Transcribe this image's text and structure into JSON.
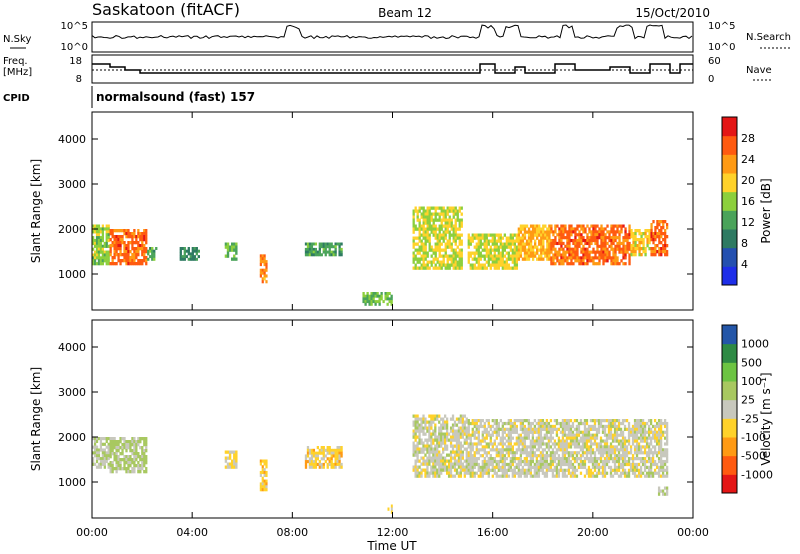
{
  "header": {
    "station": "Saskatoon (fitACF)",
    "beam": "Beam 12",
    "date": "15/Oct/2010"
  },
  "noise_panel": {
    "left_label": "N.Sky",
    "right_label": "N.Search",
    "left_ticks": [
      "10^5",
      "10^0"
    ],
    "right_ticks": [
      "10^5",
      "10^0"
    ]
  },
  "freq_panel": {
    "left_label_1": "Freq.",
    "left_label_2": "[MHz]",
    "right_label": "Nave",
    "left_ticks": [
      "18",
      "8"
    ],
    "right_ticks": [
      "60",
      "0"
    ]
  },
  "cpid": {
    "label": "CPID",
    "value": "normalsound (fast) 157"
  },
  "colors": {
    "power_scale": [
      "#1e2ee8",
      "#2450b0",
      "#2e7a62",
      "#4aa35a",
      "#8ccf3c",
      "#ffd22a",
      "#ff9a14",
      "#ff5a10",
      "#e41616"
    ],
    "velocity_scale": [
      "#e41616",
      "#ff5a10",
      "#ff9a14",
      "#ffd22a",
      "#c8c8bd",
      "#a8c860",
      "#6cc442",
      "#2e8a44",
      "#2456a8"
    ]
  },
  "x_axis": {
    "label": "Time UT",
    "ticks": [
      "00:00",
      "04:00",
      "08:00",
      "12:00",
      "16:00",
      "20:00",
      "00:00"
    ]
  },
  "power_panel": {
    "ylabel": "Slant Range [km]",
    "yticks": [
      "4000",
      "3000",
      "2000",
      "1000"
    ],
    "colorbar_label": "Power [dB]",
    "colorbar_ticks": [
      "28",
      "24",
      "20",
      "16",
      "12",
      "8",
      "4"
    ]
  },
  "velocity_panel": {
    "ylabel": "Slant Range [km]",
    "yticks": [
      "4000",
      "3000",
      "2000",
      "1000"
    ],
    "colorbar_label": "Velocity [m s⁻¹]",
    "colorbar_ticks": [
      "1000",
      "500",
      "100",
      "25",
      "-25",
      "-100",
      "-500",
      "-1000"
    ]
  },
  "chart_data": [
    {
      "type": "heatmap",
      "title": "Power",
      "x_unit": "hours UT",
      "xlim": [
        0,
        24
      ],
      "ylim": [
        200,
        4600
      ],
      "ylabel": "Slant Range [km]",
      "xlabel": "Time UT",
      "color_label": "Power [dB]",
      "color_range": [
        0,
        32
      ],
      "regions": [
        {
          "t": [
            0.0,
            0.7
          ],
          "r": [
            1200,
            2100
          ],
          "value": 16
        },
        {
          "t": [
            0.7,
            2.2
          ],
          "r": [
            1200,
            2000
          ],
          "value": 26
        },
        {
          "t": [
            2.2,
            2.6
          ],
          "r": [
            1300,
            1600
          ],
          "value": 12
        },
        {
          "t": [
            3.5,
            4.3
          ],
          "r": [
            1300,
            1600
          ],
          "value": 10
        },
        {
          "t": [
            5.3,
            5.8
          ],
          "r": [
            1300,
            1700
          ],
          "value": 14
        },
        {
          "t": [
            6.7,
            7.0
          ],
          "r": [
            800,
            1500
          ],
          "value": 24
        },
        {
          "t": [
            8.5,
            10.0
          ],
          "r": [
            1400,
            1700
          ],
          "value": 12
        },
        {
          "t": [
            10.8,
            12.0
          ],
          "r": [
            300,
            600
          ],
          "value": 14
        },
        {
          "t": [
            12.8,
            14.8
          ],
          "r": [
            1100,
            2500
          ],
          "value": 18
        },
        {
          "t": [
            15.0,
            17.0
          ],
          "r": [
            1100,
            1900
          ],
          "value": 18
        },
        {
          "t": [
            17.0,
            18.3
          ],
          "r": [
            1300,
            2100
          ],
          "value": 22
        },
        {
          "t": [
            18.3,
            21.5
          ],
          "r": [
            1200,
            2100
          ],
          "value": 26
        },
        {
          "t": [
            21.5,
            22.3
          ],
          "r": [
            1400,
            2000
          ],
          "value": 20
        },
        {
          "t": [
            22.3,
            23.0
          ],
          "r": [
            1400,
            2200
          ],
          "value": 26
        }
      ]
    },
    {
      "type": "heatmap",
      "title": "Velocity",
      "x_unit": "hours UT",
      "xlim": [
        0,
        24
      ],
      "ylim": [
        200,
        4600
      ],
      "ylabel": "Slant Range [km]",
      "xlabel": "Time UT",
      "color_label": "Velocity [m s⁻¹]",
      "color_range": [
        -1000,
        1000
      ],
      "regions": [
        {
          "t": [
            0.0,
            0.7
          ],
          "r": [
            1300,
            2000
          ],
          "value": 80
        },
        {
          "t": [
            0.7,
            2.2
          ],
          "r": [
            1200,
            2000
          ],
          "value": 150
        },
        {
          "t": [
            5.3,
            5.8
          ],
          "r": [
            1300,
            1700
          ],
          "value": -150
        },
        {
          "t": [
            6.7,
            7.0
          ],
          "r": [
            800,
            1500
          ],
          "value": -200
        },
        {
          "t": [
            8.5,
            10.0
          ],
          "r": [
            1300,
            1800
          ],
          "value": -200
        },
        {
          "t": [
            11.8,
            12.0
          ],
          "r": [
            300,
            500
          ],
          "value": -150
        },
        {
          "t": [
            12.8,
            15.0
          ],
          "r": [
            1100,
            2500
          ],
          "value": 0
        },
        {
          "t": [
            15.0,
            23.0
          ],
          "r": [
            1100,
            2400
          ],
          "value": 0
        },
        {
          "t": [
            22.6,
            23.0
          ],
          "r": [
            700,
            900
          ],
          "value": 110
        }
      ]
    }
  ]
}
